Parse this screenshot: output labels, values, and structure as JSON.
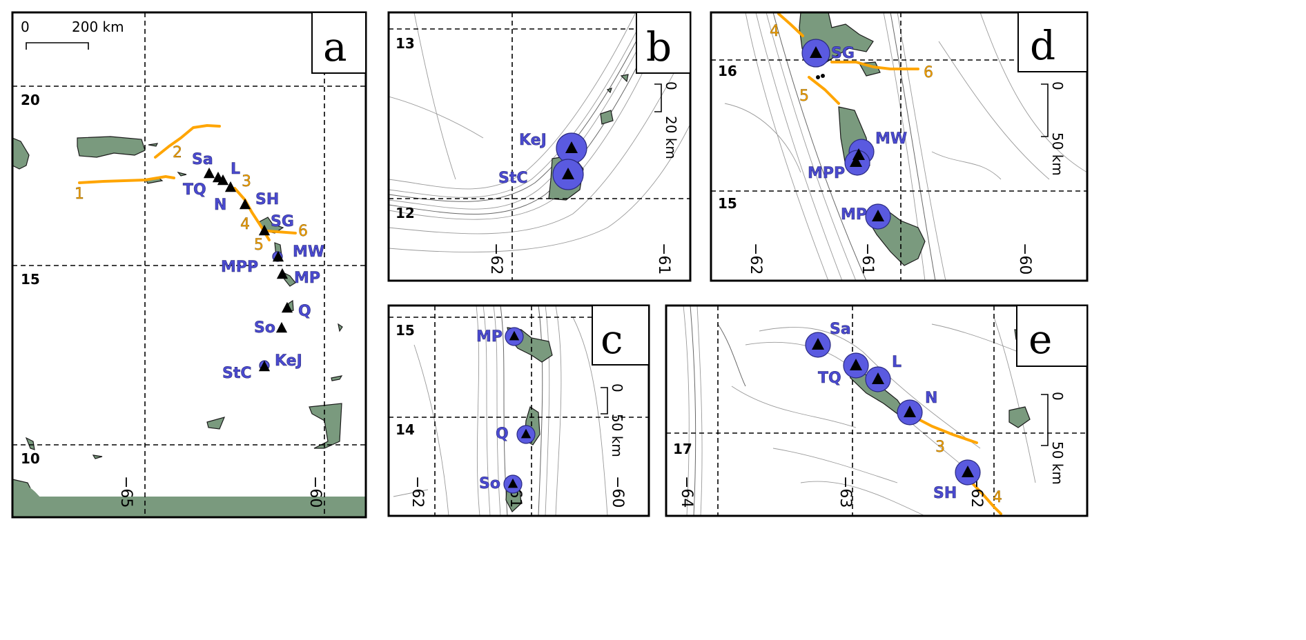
{
  "colors": {
    "land": "#7a9a7e",
    "trench_lines": "#ffa500",
    "volcano_circle": "#5a5ae0",
    "volcano_label": "#4a4ad0"
  },
  "panels": {
    "a": {
      "label": "a",
      "scale_zero": "0",
      "scale_text": "200 km",
      "lat_ticks": [
        "20",
        "15",
        "10"
      ],
      "lon_ticks": [
        "−65",
        "−60"
      ],
      "line_labels": [
        "1",
        "2",
        "3",
        "4",
        "5",
        "6"
      ],
      "volcanoes": [
        "Sa",
        "TQ",
        "L",
        "N",
        "SH",
        "SG",
        "MW",
        "MPP",
        "MP",
        "Q",
        "So",
        "KeJ",
        "StC"
      ]
    },
    "b": {
      "label": "b",
      "lat_ticks": [
        "13",
        "12"
      ],
      "lon_ticks": [
        "−62",
        "−61"
      ],
      "scale_zero": "0",
      "scale_text": "20 km",
      "volcanoes": [
        "KeJ",
        "StC"
      ]
    },
    "c": {
      "label": "c",
      "lat_ticks": [
        "15",
        "14"
      ],
      "lon_ticks": [
        "−62",
        "−61",
        "−60"
      ],
      "scale_zero": "0",
      "scale_text": "50 km",
      "volcanoes": [
        "MP",
        "Q",
        "So"
      ]
    },
    "d": {
      "label": "d",
      "lat_ticks": [
        "16",
        "15"
      ],
      "lon_ticks": [
        "−62",
        "−61",
        "−60"
      ],
      "scale_zero": "0",
      "scale_text": "50 km",
      "line_labels": [
        "4",
        "5",
        "6"
      ],
      "volcanoes": [
        "SG",
        "MW",
        "MPP",
        "MP"
      ]
    },
    "e": {
      "label": "e",
      "lat_ticks": [
        "17"
      ],
      "lon_ticks": [
        "−64",
        "−63",
        "−62"
      ],
      "scale_zero": "0",
      "scale_text": "50 km",
      "line_labels": [
        "3",
        "4"
      ],
      "volcanoes": [
        "Sa",
        "TQ",
        "L",
        "N",
        "SH"
      ]
    }
  }
}
